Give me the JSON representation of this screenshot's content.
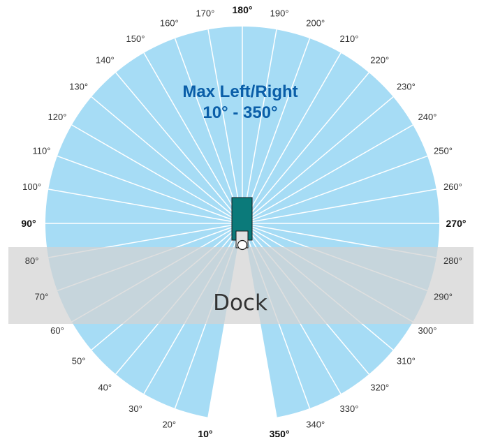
{
  "title": {
    "line1": "Max Left/Right",
    "line2": "10° - 350°"
  },
  "dock": {
    "label": "Dock"
  },
  "angles": {
    "start": 10,
    "end": 350,
    "step": 10,
    "major": [
      90,
      180,
      270,
      10,
      350
    ],
    "labels": {
      "10": "10°",
      "20": "20°",
      "30": "30°",
      "40": "40°",
      "50": "50°",
      "60": "60°",
      "70": "70°",
      "80": "80°",
      "90": "90°",
      "100": "100°",
      "110": "110°",
      "120": "120°",
      "130": "130°",
      "140": "140°",
      "150": "150°",
      "160": "160°",
      "170": "170°",
      "180": "180°",
      "190": "190°",
      "200": "200°",
      "210": "210°",
      "220": "220°",
      "230": "230°",
      "240": "240°",
      "250": "250°",
      "260": "260°",
      "270": "270°",
      "280": "280°",
      "290": "290°",
      "300": "300°",
      "310": "310°",
      "320": "320°",
      "330": "330°",
      "340": "340°",
      "350": "350°"
    }
  },
  "colors": {
    "sector": "#a6dcf5",
    "sector_line": "#ffffff",
    "title": "#0a5ea8",
    "dock_band": "#d3d3d3",
    "device": "#0b7a7a",
    "device_stroke": "#1a1a1a",
    "mount": "#e2e2e2"
  }
}
